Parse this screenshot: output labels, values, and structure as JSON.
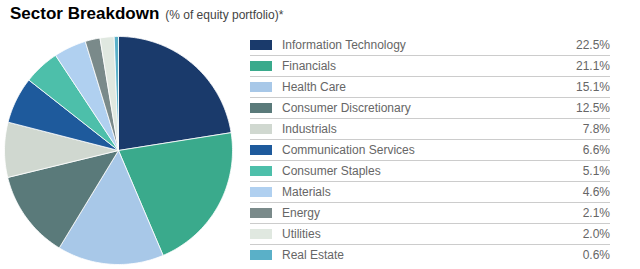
{
  "chart_data": {
    "type": "pie",
    "title": "Sector Breakdown",
    "subtitle": "(% of equity portfolio)*",
    "categories": [
      "Information Technology",
      "Financials",
      "Health Care",
      "Consumer Discretionary",
      "Industrials",
      "Communication Services",
      "Consumer Staples",
      "Materials",
      "Energy",
      "Utilities",
      "Real Estate"
    ],
    "values": [
      22.5,
      21.1,
      15.1,
      12.5,
      7.8,
      6.6,
      5.1,
      4.6,
      2.1,
      2.0,
      0.6
    ],
    "value_labels": [
      "22.5%",
      "21.1%",
      "15.1%",
      "12.5%",
      "7.8%",
      "6.6%",
      "5.1%",
      "4.6%",
      "2.1%",
      "2.0%",
      "0.6%"
    ],
    "colors": [
      "#1a3a6b",
      "#3aaa8c",
      "#a8c8e8",
      "#5a7a7a",
      "#d0d8d0",
      "#1e5a9c",
      "#4dbfaa",
      "#b0d0f0",
      "#7a8a8a",
      "#e0e8e0",
      "#5ab0c8"
    ],
    "legend": "right"
  }
}
